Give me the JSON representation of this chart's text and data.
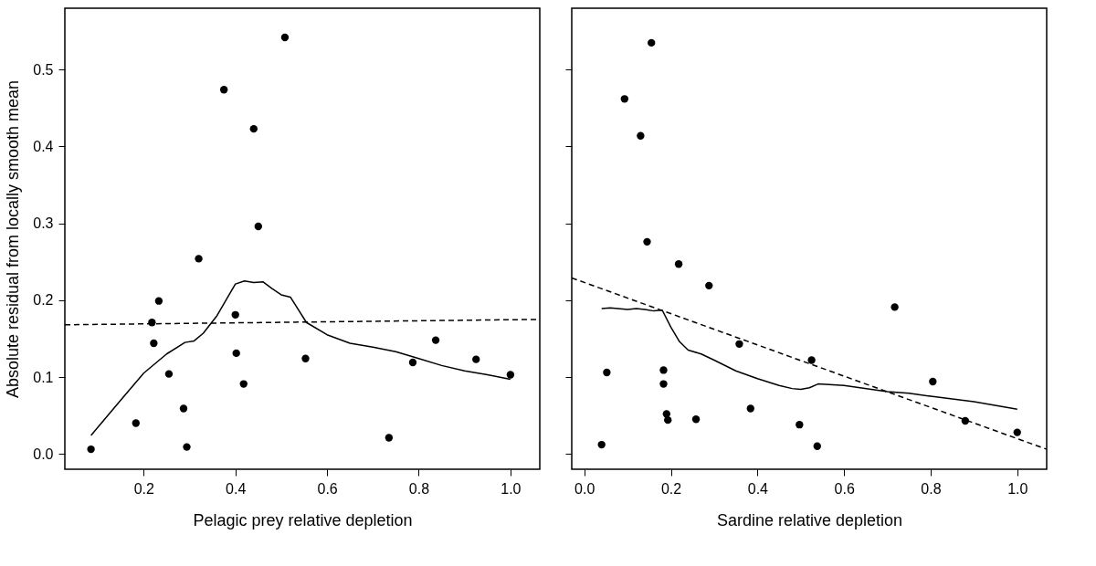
{
  "chart_data": [
    {
      "type": "scatter",
      "xlabel": "Pelagic prey relative depletion",
      "ylabel": "Absolute residual from locally smooth mean",
      "xlim": [
        0.028,
        1.064
      ],
      "ylim": [
        -0.02,
        0.58
      ],
      "xticks": [
        {
          "value": 0.2,
          "label": "0.2"
        },
        {
          "value": 0.4,
          "label": "0.4"
        },
        {
          "value": 0.6,
          "label": "0.6"
        },
        {
          "value": 0.8,
          "label": "0.8"
        },
        {
          "value": 1.0,
          "label": "1.0"
        }
      ],
      "yticks": [
        {
          "value": 0.0,
          "label": "0.0"
        },
        0.1,
        0.2,
        0.3,
        0.4,
        0.5
      ],
      "grid": false,
      "series": [
        {
          "type": "scatter",
          "color": "#000000",
          "marker": "circle",
          "x": [
            0.085,
            0.183,
            0.218,
            0.222,
            0.233,
            0.255,
            0.287,
            0.294,
            0.32,
            0.375,
            0.4,
            0.402,
            0.418,
            0.44,
            0.45,
            0.508,
            0.553,
            0.735,
            0.787,
            0.837,
            0.925,
            1.0
          ],
          "values": [
            0.006,
            0.04,
            0.171,
            0.144,
            0.199,
            0.104,
            0.059,
            0.009,
            0.254,
            0.474,
            0.181,
            0.131,
            0.091,
            0.423,
            0.296,
            0.542,
            0.124,
            0.021,
            0.119,
            0.148,
            0.123,
            0.103
          ]
        },
        {
          "type": "line",
          "color": "#000000",
          "line_style": "solid",
          "x": [
            0.085,
            0.15,
            0.2,
            0.25,
            0.29,
            0.31,
            0.33,
            0.36,
            0.4,
            0.42,
            0.44,
            0.46,
            0.48,
            0.5,
            0.52,
            0.555,
            0.6,
            0.65,
            0.7,
            0.75,
            0.8,
            0.85,
            0.9,
            0.95,
            1.0
          ],
          "values": [
            0.024,
            0.07,
            0.105,
            0.13,
            0.145,
            0.147,
            0.157,
            0.18,
            0.221,
            0.225,
            0.223,
            0.224,
            0.215,
            0.207,
            0.204,
            0.171,
            0.155,
            0.144,
            0.139,
            0.133,
            0.124,
            0.115,
            0.108,
            0.103,
            0.097
          ]
        },
        {
          "type": "line",
          "color": "#000000",
          "line_style": "dashed",
          "x": [
            0.028,
            1.064
          ],
          "values": [
            0.168,
            0.175
          ]
        }
      ]
    },
    {
      "type": "scatter",
      "xlabel": "Sardine relative depletion",
      "xlim": [
        -0.029,
        1.068
      ],
      "ylim": [
        -0.02,
        0.58
      ],
      "tick_labels": "x",
      "xticks": [
        {
          "value": 0.0,
          "label": "0.0"
        },
        {
          "value": 0.2,
          "label": "0.2"
        },
        {
          "value": 0.4,
          "label": "0.4"
        },
        {
          "value": 0.6,
          "label": "0.6"
        },
        {
          "value": 0.8,
          "label": "0.8"
        },
        {
          "value": 1.0,
          "label": "1.0"
        }
      ],
      "yticks": [
        0,
        0.1,
        0.2,
        0.3,
        0.4,
        0.5
      ],
      "grid": false,
      "series": [
        {
          "type": "scatter",
          "color": "#000000",
          "marker": "circle",
          "x": [
            0.04,
            0.052,
            0.093,
            0.13,
            0.145,
            0.155,
            0.183,
            0.183,
            0.19,
            0.193,
            0.218,
            0.258,
            0.288,
            0.358,
            0.384,
            0.497,
            0.525,
            0.538,
            0.717,
            0.805,
            0.88,
            1.0
          ],
          "values": [
            0.012,
            0.106,
            0.462,
            0.414,
            0.276,
            0.535,
            0.109,
            0.091,
            0.052,
            0.044,
            0.247,
            0.045,
            0.219,
            0.143,
            0.059,
            0.038,
            0.122,
            0.01,
            0.191,
            0.094,
            0.043,
            0.028
          ]
        },
        {
          "type": "line",
          "color": "#000000",
          "line_style": "solid",
          "x": [
            0.04,
            0.06,
            0.1,
            0.12,
            0.14,
            0.16,
            0.18,
            0.2,
            0.22,
            0.24,
            0.27,
            0.3,
            0.35,
            0.4,
            0.45,
            0.48,
            0.5,
            0.52,
            0.54,
            0.6,
            0.7,
            0.75,
            0.8,
            0.9,
            1.0
          ],
          "values": [
            0.189,
            0.19,
            0.188,
            0.189,
            0.188,
            0.186,
            0.187,
            0.165,
            0.146,
            0.135,
            0.13,
            0.122,
            0.108,
            0.098,
            0.089,
            0.085,
            0.084,
            0.086,
            0.091,
            0.089,
            0.081,
            0.079,
            0.075,
            0.068,
            0.058
          ]
        },
        {
          "type": "line",
          "color": "#000000",
          "line_style": "dashed",
          "x": [
            -0.029,
            1.068
          ],
          "values": [
            0.229,
            0.006
          ]
        }
      ]
    }
  ]
}
